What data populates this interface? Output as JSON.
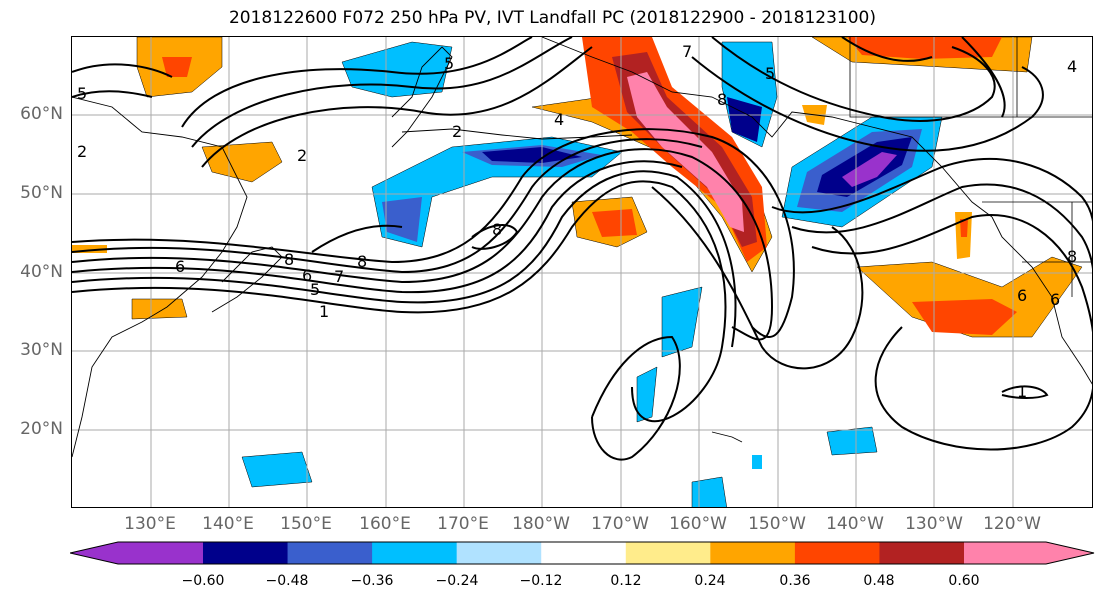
{
  "title": "2018122600 F072 250 hPa PV, IVT Landfall PC (2018122900 - 2018123100)",
  "lat_labels": [
    "60°N",
    "50°N",
    "40°N",
    "30°N",
    "20°N"
  ],
  "lon_labels": [
    "130°E",
    "140°E",
    "150°E",
    "160°E",
    "170°E",
    "180°W",
    "170°W",
    "160°W",
    "150°W",
    "140°W",
    "130°W",
    "120°W"
  ],
  "colorbar": {
    "ticks": [
      "−0.60",
      "−0.48",
      "−0.36",
      "−0.24",
      "−0.12",
      "0.12",
      "0.24",
      "0.36",
      "0.48",
      "0.60"
    ],
    "colors": [
      "#9932cc",
      "#00008b",
      "#3a5fcd",
      "#00bfff",
      "#b0e2ff",
      "#ffffff",
      "#ffec8b",
      "#ffa500",
      "#ff4500",
      "#b22222",
      "#ff82ab"
    ]
  },
  "contour_labels": [
    "5",
    "2",
    "2",
    "4",
    "7",
    "8",
    "5",
    "6",
    "8",
    "8",
    "8",
    "6",
    "7",
    "5",
    "1",
    "2",
    "5",
    "8",
    "6",
    "6",
    "1",
    "4"
  ],
  "map": {
    "lat_range": [
      10,
      70
    ],
    "lon_range": [
      120,
      251
    ],
    "field": "250 hPa PV (contours), IVT Landfall PC (shading)"
  }
}
